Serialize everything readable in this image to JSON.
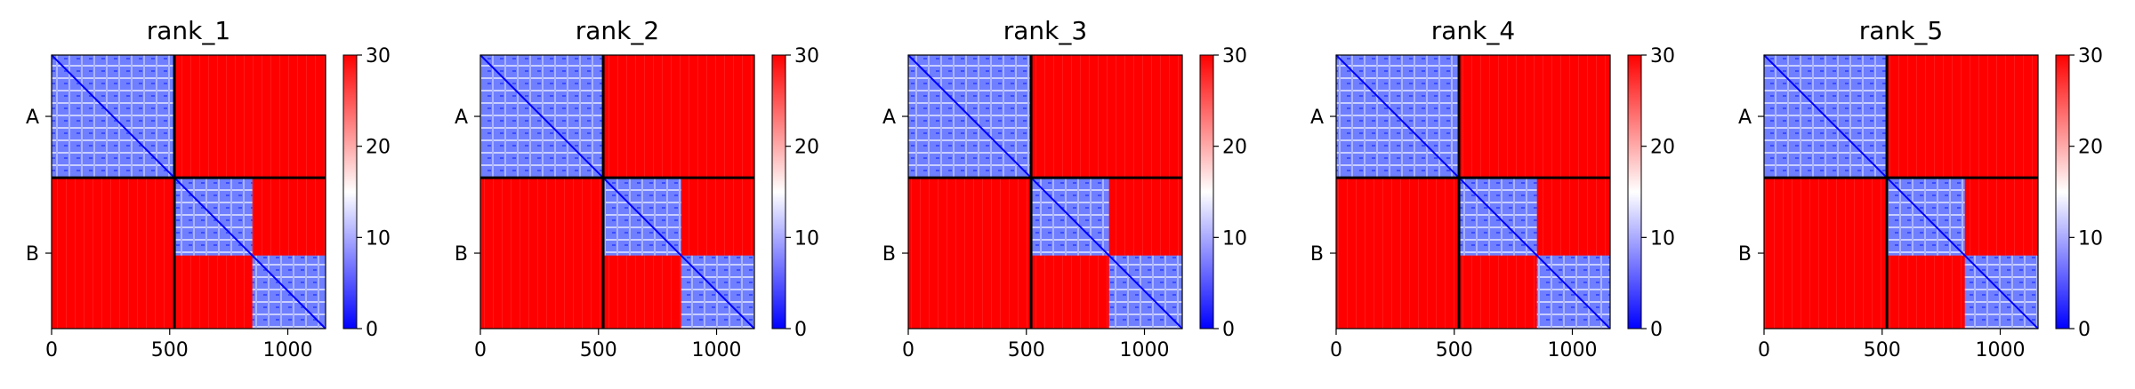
{
  "chart_data": {
    "type": "heatmap",
    "x_ticks": [
      0,
      500,
      1000
    ],
    "x_range": [
      0,
      1160
    ],
    "y_ticks": [
      "A",
      "B"
    ],
    "chain_boundary": 520,
    "block_boundaries": [
      520,
      850,
      1160
    ],
    "colorbar": {
      "ticks": [
        0,
        10,
        20,
        30
      ],
      "range": [
        0,
        30
      ],
      "colormap": "bwr"
    },
    "colors": {
      "low": "#0000ff",
      "mid": "#ffffff",
      "high": "#ff0000"
    },
    "panels": [
      {
        "title": "rank_1",
        "intra_block_value_approx": 8,
        "inter_block_value_approx": 30
      },
      {
        "title": "rank_2",
        "intra_block_value_approx": 8,
        "inter_block_value_approx": 30
      },
      {
        "title": "rank_3",
        "intra_block_value_approx": 8,
        "inter_block_value_approx": 30
      },
      {
        "title": "rank_4",
        "intra_block_value_approx": 8,
        "inter_block_value_approx": 30
      },
      {
        "title": "rank_5",
        "intra_block_value_approx": 8,
        "inter_block_value_approx": 30
      }
    ]
  }
}
